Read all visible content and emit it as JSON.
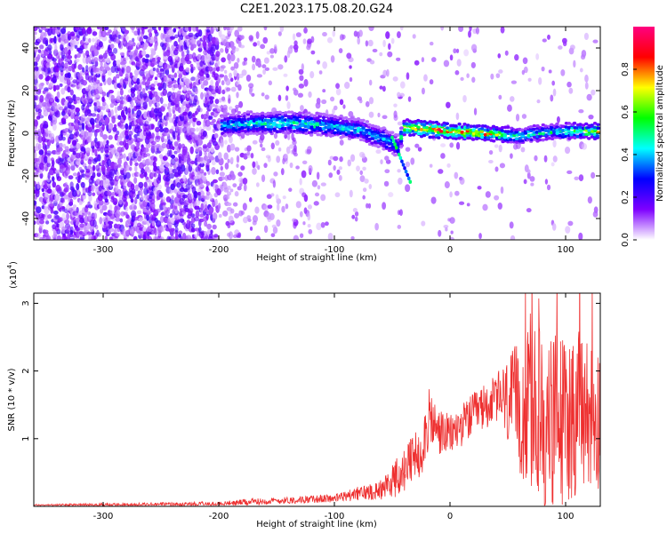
{
  "title": "C2E1.2023.175.08.20.G24",
  "chart_data": [
    {
      "type": "heatmap",
      "name": "spectrogram",
      "xlabel": "Height of straight line (km)",
      "ylabel": "Frequency (Hz)",
      "xlim": [
        -360,
        130
      ],
      "ylim": [
        -50,
        50
      ],
      "xticks": [
        -300,
        -200,
        -100,
        0,
        100
      ],
      "yticks": [
        -40,
        -20,
        0,
        20,
        40
      ],
      "xtick_labels": [
        "-300",
        "-200",
        "-100",
        "0",
        "100"
      ],
      "ytick_labels": [
        "-40",
        "-20",
        "0",
        "20",
        "40"
      ],
      "colorbar": {
        "label": "Normalized spectral amplitude",
        "range": [
          0,
          1
        ],
        "ticks": [
          0.0,
          0.2,
          0.4,
          0.6,
          0.8
        ],
        "tick_labels": [
          "0.0",
          "0.2",
          "0.4",
          "0.6",
          "0.8"
        ],
        "colormap": [
          "#ffffff",
          "#7e00ff",
          "#0000ff",
          "#00ffff",
          "#00ff00",
          "#ffff00",
          "#ff0000",
          "#ff0080"
        ]
      },
      "signal_track": [
        {
          "x": -195,
          "freq": 4,
          "amp": 0.45
        },
        {
          "x": -170,
          "freq": 5,
          "amp": 0.5
        },
        {
          "x": -140,
          "freq": 5,
          "amp": 0.55
        },
        {
          "x": -110,
          "freq": 4,
          "amp": 0.5
        },
        {
          "x": -80,
          "freq": 2,
          "amp": 0.45
        },
        {
          "x": -60,
          "freq": -2,
          "amp": 0.45
        },
        {
          "x": -45,
          "freq": -6,
          "amp": 0.4
        },
        {
          "x": -40,
          "freq": 3,
          "amp": 0.7
        },
        {
          "x": -20,
          "freq": 2,
          "amp": 0.85
        },
        {
          "x": 0,
          "freq": 1,
          "amp": 0.85
        },
        {
          "x": 30,
          "freq": 0,
          "amp": 0.8
        },
        {
          "x": 60,
          "freq": -1,
          "amp": 0.5
        },
        {
          "x": 90,
          "freq": 1,
          "amp": 0.5
        },
        {
          "x": 130,
          "freq": 1,
          "amp": 0.75
        }
      ]
    },
    {
      "type": "line",
      "name": "snr",
      "xlabel": "Height of straight line (km)",
      "ylabel": "SNR (10 * v/v)",
      "y_multiplier": "(x10",
      "y_exponent": "4",
      "xlim": [
        -360,
        130
      ],
      "ylim": [
        0,
        3.15
      ],
      "xticks": [
        -300,
        -200,
        -100,
        0,
        100
      ],
      "yticks": [
        1,
        2,
        3
      ],
      "xtick_labels": [
        "-300",
        "-200",
        "-100",
        "0",
        "100"
      ],
      "ytick_labels": [
        "1",
        "2",
        "3"
      ],
      "color": "#ee3030",
      "envelope_x": [
        -360,
        -200,
        -180,
        -100,
        -60,
        -40,
        -25,
        -18,
        -10,
        0,
        20,
        40,
        55,
        70,
        85,
        100,
        115,
        130
      ],
      "envelope_y": [
        0.02,
        0.03,
        0.06,
        0.12,
        0.25,
        0.5,
        0.85,
        1.3,
        1.1,
        1.05,
        1.35,
        1.6,
        1.5,
        1.4,
        1.2,
        1.3,
        1.4,
        1.35
      ],
      "noise_amp_x": [
        -360,
        -100,
        -60,
        -40,
        -20,
        0,
        40,
        60,
        80,
        100,
        130
      ],
      "noise_amp_y": [
        0.01,
        0.06,
        0.15,
        0.35,
        0.45,
        0.3,
        0.35,
        1.0,
        1.45,
        1.3,
        1.1
      ]
    }
  ]
}
